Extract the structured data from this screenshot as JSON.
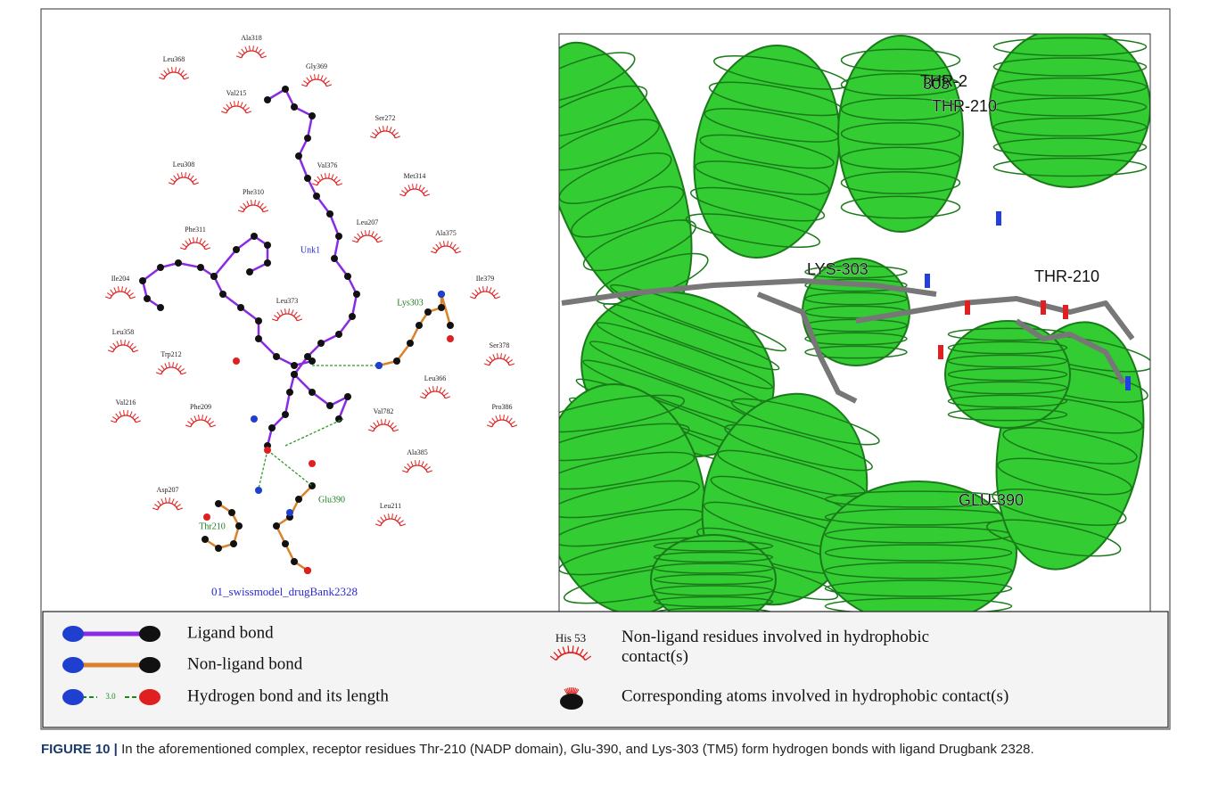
{
  "figure": {
    "ligplot": {
      "residues": [
        "Ala318",
        "Leu368",
        "Gly369",
        "Val215",
        "Ser272",
        "Leu308",
        "Val376",
        "Met314",
        "Phe310",
        "Phe311",
        "Leu207",
        "Ala375",
        "Ile204",
        "Ile379",
        "Leu373",
        "Leu358",
        "Trp212",
        "Ser378",
        "Leu366",
        "Val216",
        "Phe209",
        "Val782",
        "Pro386",
        "Ala385",
        "Asp207",
        "Leu211"
      ],
      "ligand": "Unk1",
      "hbond_residues": [
        "Lys303",
        "Thr210",
        "Glu390"
      ],
      "title": "01_swissmodel_drugBank2328"
    },
    "structure": {
      "labels": [
        "THR-2",
        "303",
        "LYS-303",
        "THR-210",
        "GLU-390"
      ]
    },
    "legend": {
      "ligand_bond": "Ligand bond",
      "non_ligand_bond": "Non-ligand bond",
      "hbond": "Hydrogen bond and its length",
      "hbond_length": "3.0",
      "example_residue": "His 53",
      "hydrophobic_residues": "Non-ligand residues involved in hydrophobic contact(s)",
      "hydrophobic_atoms": "Corresponding atoms involved in hydrophobic contact(s)"
    },
    "caption": {
      "label": "FIGURE 10 |",
      "text": "In the aforementioned complex, receptor residues Thr-210 (NADP domain), Glu-390, and Lys-303 (TM5) form hydrogen bonds with ligand Drugbank 2328."
    }
  }
}
